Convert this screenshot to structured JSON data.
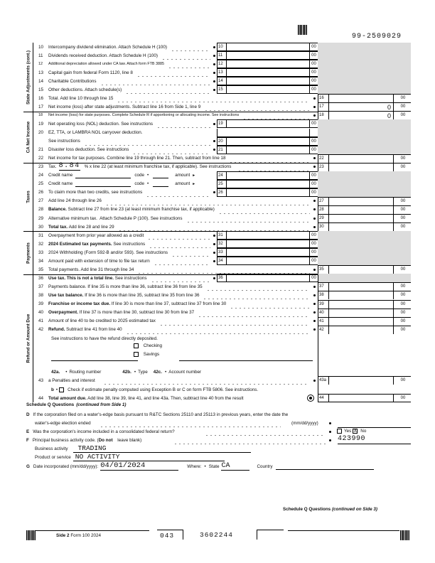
{
  "header": {
    "ein": "99-2509029"
  },
  "sections": [
    "State Adjustments (cont.)",
    "CA Net Income",
    "Taxes",
    "Payments",
    "Refund or Amount Due"
  ],
  "lines": [
    {
      "num": "10",
      "bold": "",
      "text": "Intercompany dividend elimination. Attach Schedule H (100)",
      "box": "mid",
      "label": "10",
      "cents": "00",
      "value": ""
    },
    {
      "num": "11",
      "bold": "",
      "text": "Dividends received deduction. Attach Schedule H (100)",
      "box": "mid",
      "label": "11",
      "cents": "00",
      "value": ""
    },
    {
      "num": "12",
      "bold": "",
      "text": "Additional depreciation allowed under CA law. Attach form FTB 3885",
      "box": "mid",
      "label": "12",
      "cents": "00",
      "value": "",
      "small": true
    },
    {
      "num": "13",
      "bold": "",
      "text": "Capital gain from federal Form 1120, line 8",
      "box": "mid",
      "label": "13",
      "cents": "00",
      "value": ""
    },
    {
      "num": "14",
      "bold": "",
      "text": "Charitable Contributions",
      "box": "mid",
      "label": "14",
      "cents": "00",
      "value": ""
    },
    {
      "num": "15",
      "bold": "",
      "text": "Other deductions. Attach schedule(s)",
      "box": "mid",
      "label": "15",
      "cents": "00",
      "value": ""
    },
    {
      "num": "16",
      "bold": "",
      "text": "Total. Add line 10 through line 15",
      "box": "right",
      "label": "16",
      "cents": "00",
      "value": ""
    },
    {
      "num": "17",
      "bold": "",
      "text": "Net income (loss) after state adjustments. Subtract line 16 from Side 1, line 9",
      "box": "right",
      "label": "17",
      "cents": "00",
      "value": "0"
    },
    {
      "num": "18",
      "bold": "",
      "text": "Net income (loss) for state purposes. Complete Schedule R if apportioning or allocating income. See instructions",
      "box": "right",
      "label": "18",
      "cents": "00",
      "value": "0",
      "small": true
    },
    {
      "num": "19",
      "bold": "",
      "text": "Net operating loss (NOL) deduction. See instructions",
      "box": "mid",
      "label": "19",
      "cents": "00",
      "value": ""
    },
    {
      "num": "20",
      "bold": "",
      "text": "EZ, TTA, or LAMBRA NOL carryover deduction.",
      "box": "midtop",
      "label": "",
      "cents": "",
      "value": ""
    },
    {
      "num": "",
      "bold": "",
      "text": "See instructions",
      "box": "mid",
      "label": "20",
      "cents": "00",
      "value": ""
    },
    {
      "num": "21",
      "bold": "",
      "text": "Disaster loss deduction. See instructions",
      "box": "mid",
      "label": "21",
      "cents": "00",
      "value": ""
    },
    {
      "num": "22",
      "bold": "",
      "text": "Net income for tax purposes. Combine line 19 through line 21. Then, subtract from line 18",
      "box": "right",
      "label": "22",
      "cents": "00",
      "value": ""
    },
    {
      "num": "23",
      "bold": "",
      "text": "% x line 22 (at least minimum franchise tax, if applicable). See instructions",
      "box": "right",
      "label": "23",
      "cents": "00",
      "value": "",
      "tax_label": "Tax.",
      "rate": "8.84"
    },
    {
      "num": "24",
      "bold": "",
      "text": "Credit name",
      "box": "mid",
      "label": "24",
      "cents": "00",
      "value": "",
      "code": "code",
      "amount": "amount"
    },
    {
      "num": "25",
      "bold": "",
      "text": "Credit name",
      "box": "mid",
      "label": "25",
      "cents": "00",
      "value": "",
      "code": "code",
      "amount": "amount"
    },
    {
      "num": "26",
      "bold": "",
      "text": "To claim more than two credits, see instructions",
      "box": "mid",
      "label": "26",
      "cents": "00",
      "value": ""
    },
    {
      "num": "27",
      "bold": "",
      "text": "Add line 24 through line 26",
      "box": "right",
      "label": "27",
      "cents": "00",
      "value": ""
    },
    {
      "num": "28",
      "bold": "Balance.",
      "text": " Subtract line 27 from line 23 (at least minimum franchise tax, if applicable)",
      "box": "right",
      "label": "28",
      "cents": "00",
      "value": ""
    },
    {
      "num": "29",
      "bold": "",
      "text": "Alternative minimum tax.  Attach Schedule P (100). See instructions",
      "box": "right",
      "label": "29",
      "cents": "00",
      "value": ""
    },
    {
      "num": "30",
      "bold": "Total tax.",
      "text": " Add line 28 and line 29",
      "box": "right",
      "label": "30",
      "cents": "00",
      "value": ""
    },
    {
      "num": "31",
      "bold": "",
      "text": "Overpayment from prior year allowed as a credit",
      "box": "mid",
      "label": "31",
      "cents": "00",
      "value": ""
    },
    {
      "num": "32",
      "bold": "2024 Estimated tax payments.",
      "text": " See instructions",
      "box": "mid",
      "label": "32",
      "cents": "00",
      "value": ""
    },
    {
      "num": "33",
      "bold": "",
      "text": "2024 Withholding (Form 592-B and/or 593). See instructions",
      "box": "mid",
      "label": "33",
      "cents": "00",
      "value": ""
    },
    {
      "num": "34",
      "bold": "",
      "text": "Amount paid with extension of time to file tax return",
      "box": "mid",
      "label": "34",
      "cents": "00",
      "value": ""
    },
    {
      "num": "35",
      "bold": "",
      "text": "Total payments. Add line 31 through line 34",
      "box": "right",
      "label": "35",
      "cents": "00",
      "value": ""
    },
    {
      "num": "36",
      "bold": "Use tax. This is not a total line.",
      "text": " See instructions",
      "box": "mid",
      "label": "36",
      "cents": "00",
      "value": ""
    },
    {
      "num": "37",
      "bold": "",
      "text": "Payments balance. If line 35 is more than line 36, subtract line 36 from line 35",
      "box": "right",
      "label": "37",
      "cents": "00",
      "value": ""
    },
    {
      "num": "38",
      "bold": "Use tax balance.",
      "text": " If line 36 is more than line 35, subtract line 35 from line 36",
      "box": "right",
      "label": "38",
      "cents": "00",
      "value": ""
    },
    {
      "num": "39",
      "bold": "Franchise or income tax due.",
      "text": " If line 30 is more than line 37, subtract line 37 from line 30",
      "box": "right",
      "label": "39",
      "cents": "00",
      "value": ""
    },
    {
      "num": "40",
      "bold": "Overpayment.",
      "text": " If line 37 is more than line 30, subtract line 30 from line 37",
      "box": "right",
      "label": "40",
      "cents": "00",
      "value": ""
    },
    {
      "num": "41",
      "bold": "",
      "text": "Amount of line 40 to be credited to 2025 estimated tax",
      "box": "right",
      "label": "41",
      "cents": "00",
      "value": ""
    },
    {
      "num": "42",
      "bold": "Refund.",
      "text": " Subtract line 41 from line 40",
      "box": "right",
      "label": "42",
      "cents": "00",
      "value": ""
    }
  ],
  "refund": {
    "note": "See instructions to have the refund directly deposited.",
    "checking": "Checking",
    "savings": "Savings",
    "routing_num": "42a.",
    "routing": "Routing number",
    "type_num": "42b.",
    "type": "Type",
    "account_num": "42c.",
    "account": "Account number"
  },
  "line43": {
    "num": "43",
    "text": "a Penalties and interest",
    "label": "43a",
    "cents": "00",
    "b_text": "Check if estimate penalty computed using Exception B or C on form FTB 5806. See instructions.",
    "b_label": "b"
  },
  "line44": {
    "num": "44",
    "bold": "Total amount due.",
    "text": " Add line 38, line 39, line 41, and line 43a. Then, subtract line 40 from the result",
    "label": "44",
    "cents": "00"
  },
  "schedule_q": {
    "title": "Schedule Q Questions",
    "title_suffix": "(continued from Side 1)",
    "D_letter": "D",
    "D_text": "If the corporation filed on a water's-edge basis pursuant to R&TC Sections 25110 and 25113 in previous years, enter the date the",
    "D_text2": "water's-edge election ended",
    "D_format": "(mm/dd/yyyy)",
    "E_letter": "E",
    "E_text": "Was the corporation's income included in a consolidated federal return?",
    "E_yes": "Yes",
    "E_no": "No",
    "E_answer": "X",
    "F_letter": "F",
    "F_text": "Principal business activity code. (",
    "F_bold": "Do not",
    "F_text2": " leave blank)",
    "F_code": "423990",
    "business_activity_label": "Business activity",
    "business_activity": "TRADING",
    "product_label": "Product or service",
    "product": "NO ACTIVITY",
    "G_letter": "G",
    "G_text": "Date incorporated (mm/dd/yyyy):",
    "G_date": "04/01/2024",
    "where": "Where:",
    "state_label": "State",
    "state": "CA",
    "country_label": "Country",
    "country": ""
  },
  "continued": {
    "title": "Schedule Q Questions",
    "suffix": "(continued on Side 3)"
  },
  "footer": {
    "side": "Side 2",
    "form": "Form 100  2024",
    "code1": "043",
    "code2": "3602244"
  }
}
